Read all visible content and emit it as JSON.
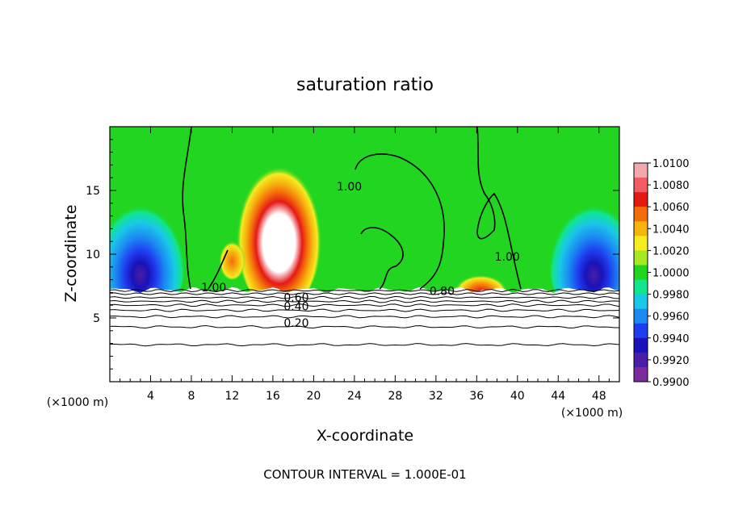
{
  "chart_data": {
    "type": "heatmap",
    "title": "saturation ratio",
    "xlabel": "X-coordinate",
    "ylabel": "Z-coordinate",
    "x_unit_label": "(×1000 m)",
    "footnote": "CONTOUR INTERVAL = 1.000E-01",
    "xlim": [
      0,
      50
    ],
    "ylim": [
      0,
      20
    ],
    "x_ticks": [
      4,
      8,
      12,
      16,
      20,
      24,
      28,
      32,
      36,
      40,
      44,
      48
    ],
    "y_ticks": [
      5,
      10,
      15
    ],
    "colorbar": {
      "labels": [
        "1.0100",
        "1.0080",
        "1.0060",
        "1.0040",
        "1.0020",
        "1.0000",
        "0.9980",
        "0.9960",
        "0.9940",
        "0.9920",
        "0.9900"
      ],
      "colors": [
        "#f4a7ac",
        "#f25b5f",
        "#e41a14",
        "#f36c0b",
        "#f6b40f",
        "#f6ec20",
        "#a6e821",
        "#21d521",
        "#11e58e",
        "#19c8e8",
        "#1b8bf2",
        "#1f3cf0",
        "#1a12b8",
        "#4a1ea6",
        "#7d2aa0"
      ]
    },
    "contour_labels": [
      {
        "text": "1.00",
        "x": 23.5,
        "z": 15.0
      },
      {
        "text": "1.00",
        "x": 39.0,
        "z": 9.5
      },
      {
        "text": "1.00",
        "x": 10.2,
        "z": 7.1
      },
      {
        "text": "0.80",
        "x": 32.6,
        "z": 6.8
      },
      {
        "text": "0.60",
        "x": 18.3,
        "z": 6.3
      },
      {
        "text": "0.40",
        "x": 18.3,
        "z": 5.6
      },
      {
        "text": "0.20",
        "x": 18.3,
        "z": 4.3
      }
    ],
    "contour_levels_below": [
      0.2,
      0.3,
      0.4,
      0.5,
      0.6,
      0.7,
      0.8,
      0.9,
      1.0
    ],
    "fields": {
      "background": "#21d521",
      "features": [
        {
          "x": 16.6,
          "z": 11.5,
          "rx": 4.2,
          "rz": 6.0,
          "value": "supersaturated-peak"
        },
        {
          "x": 36.4,
          "z": 7.6,
          "rx": 2.6,
          "rz": 1.3,
          "value": "supersaturated-low"
        },
        {
          "x": 12.0,
          "z": 9.6,
          "rx": 1.3,
          "rz": 1.6,
          "value": "supersaturated-low"
        },
        {
          "x": 3.0,
          "z": 10.0,
          "rx": 4.5,
          "rz": 5.5,
          "value": "subsaturated-left"
        },
        {
          "x": 47.5,
          "z": 10.0,
          "rx": 4.5,
          "rz": 5.5,
          "value": "subsaturated-right"
        }
      ]
    }
  }
}
